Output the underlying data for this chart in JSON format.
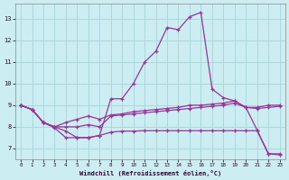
{
  "background_color": "#cceef2",
  "grid_color": "#aad8dc",
  "line_color": "#993399",
  "xlabel": "Windchill (Refroidissement éolien,°C)",
  "xlim": [
    -0.5,
    23.5
  ],
  "ylim": [
    6.5,
    13.7
  ],
  "yticks": [
    7,
    8,
    9,
    10,
    11,
    12,
    13
  ],
  "xticks": [
    0,
    1,
    2,
    3,
    4,
    5,
    6,
    7,
    8,
    9,
    10,
    11,
    12,
    13,
    14,
    15,
    16,
    17,
    18,
    19,
    20,
    21,
    22,
    23
  ],
  "line1_x": [
    0,
    1,
    2,
    3,
    4,
    5,
    6,
    7,
    8,
    9,
    10,
    11,
    12,
    13,
    14,
    15,
    16,
    17,
    18,
    19,
    20,
    21,
    22,
    23
  ],
  "line1_y": [
    9.0,
    8.8,
    8.2,
    8.0,
    8.2,
    8.35,
    8.5,
    8.35,
    8.55,
    8.6,
    8.7,
    8.75,
    8.8,
    8.85,
    8.9,
    9.0,
    9.0,
    9.05,
    9.1,
    9.2,
    8.9,
    8.9,
    9.0,
    9.0
  ],
  "line2_x": [
    0,
    1,
    2,
    3,
    4,
    5,
    6,
    7,
    8,
    9,
    10,
    11,
    12,
    13,
    14,
    15,
    16,
    17,
    18,
    19,
    20,
    21,
    22,
    23
  ],
  "line2_y": [
    9.0,
    8.8,
    8.2,
    8.0,
    8.0,
    8.0,
    8.1,
    8.0,
    8.5,
    8.55,
    8.6,
    8.65,
    8.7,
    8.75,
    8.8,
    8.85,
    8.9,
    8.95,
    9.0,
    9.1,
    8.9,
    8.85,
    8.9,
    8.95
  ],
  "line3_x": [
    0,
    1,
    2,
    3,
    4,
    5,
    6,
    7,
    8,
    9,
    10,
    11,
    12,
    13,
    14,
    15,
    16,
    17,
    18,
    19,
    20,
    21,
    22,
    23
  ],
  "line3_y": [
    9.0,
    8.8,
    8.2,
    7.95,
    7.5,
    7.5,
    7.5,
    7.6,
    7.75,
    7.8,
    7.8,
    7.82,
    7.82,
    7.82,
    7.82,
    7.82,
    7.82,
    7.82,
    7.82,
    7.82,
    7.82,
    7.82,
    6.75,
    6.75
  ],
  "line4_x": [
    0,
    1,
    2,
    3,
    4,
    5,
    6,
    7,
    8,
    9,
    10,
    11,
    12,
    13,
    14,
    15,
    16,
    17,
    18,
    19,
    20,
    21,
    22,
    23
  ],
  "line4_y": [
    9.0,
    8.8,
    8.2,
    8.0,
    7.8,
    7.5,
    7.5,
    7.6,
    9.3,
    9.3,
    10.0,
    11.0,
    11.5,
    12.6,
    12.5,
    13.1,
    13.3,
    9.75,
    9.35,
    9.2,
    8.9,
    7.85,
    6.75,
    6.7
  ]
}
